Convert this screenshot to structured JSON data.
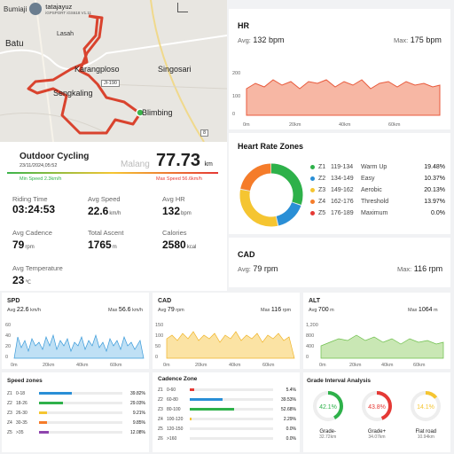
{
  "map": {
    "user_name": "tatajayuz",
    "device": "iGPSPORT iGS618 V1.11",
    "place_left": "Bumiaji",
    "labels": {
      "batu": "Batu",
      "lasah": "Lasah",
      "karangploso": "Karangploso",
      "singosari": "Singosari",
      "sengkaling": "Sengkaling",
      "jl190": "Jl-190",
      "blimbing": "Blimbing",
      "road8": "8",
      "malang": "Malang"
    }
  },
  "activity": {
    "name": "Outdoor Cycling",
    "datetime": "23/11/2024,05:52",
    "distance": "77.73",
    "distance_unit": "km",
    "min_speed": "Min Speed 2.3km/h",
    "max_speed": "Max Speed 56.6km/h"
  },
  "stats": [
    {
      "label": "Riding Time",
      "value": "03:24:53",
      "unit": ""
    },
    {
      "label": "Avg Speed",
      "value": "22.6",
      "unit": "km/h"
    },
    {
      "label": "Avg HR",
      "value": "132",
      "unit": "bpm"
    },
    {
      "label": "Avg Cadence",
      "value": "79",
      "unit": "rpm"
    },
    {
      "label": "Total Ascent",
      "value": "1765",
      "unit": "m"
    },
    {
      "label": "Calories",
      "value": "2580",
      "unit": "kcal"
    },
    {
      "label": "Avg Temperature",
      "value": "23",
      "unit": "℃"
    }
  ],
  "hr": {
    "title": "HR",
    "avg_label": "Avg:",
    "avg": "132",
    "avg_unit": "bpm",
    "max_label": "Max:",
    "max": "175",
    "max_unit": "bpm",
    "yticks": [
      "200",
      "100",
      "0"
    ],
    "xticks": [
      "0m",
      "20km",
      "40km",
      "60km"
    ]
  },
  "hr_zones": {
    "title": "Heart Rate Zones",
    "zones": [
      {
        "id": "Z1",
        "range": "119-134",
        "name": "Warm Up",
        "pct": "19.48%",
        "color": "#2eb14a"
      },
      {
        "id": "Z2",
        "range": "134-149",
        "name": "Easy",
        "pct": "10.37%",
        "color": "#2a8fd6"
      },
      {
        "id": "Z3",
        "range": "149-162",
        "name": "Aerobic",
        "pct": "20.13%",
        "color": "#f5c531"
      },
      {
        "id": "Z4",
        "range": "162-176",
        "name": "Threshold",
        "pct": "13.97%",
        "color": "#f57c2a"
      },
      {
        "id": "Z5",
        "range": "176-189",
        "name": "Maximum",
        "pct": "0.0%",
        "color": "#e53935"
      }
    ]
  },
  "cad_big": {
    "title": "CAD",
    "avg_label": "Avg:",
    "avg": "79",
    "avg_unit": "rpm",
    "max_label": "Max:",
    "max": "116",
    "max_unit": "rpm"
  },
  "spd": {
    "title": "SPD",
    "avg_label": "Avg",
    "avg": "22.6",
    "avg_unit": "km/h",
    "max_label": "Max",
    "max": "56.6",
    "max_unit": "km/h",
    "yticks": [
      "60",
      "40",
      "20",
      "0"
    ],
    "xticks": [
      "0m",
      "20km",
      "40km",
      "60km"
    ]
  },
  "cad_small": {
    "title": "CAD",
    "avg_label": "Avg",
    "avg": "79",
    "avg_unit": "rpm",
    "max_label": "Max",
    "max": "116",
    "max_unit": "rpm",
    "yticks": [
      "150",
      "100",
      "50",
      "0"
    ],
    "xticks": [
      "0m",
      "20km",
      "40km",
      "60km"
    ]
  },
  "alt": {
    "title": "ALT",
    "avg_label": "Avg",
    "avg": "700",
    "avg_unit": "m",
    "max_label": "Max",
    "max": "1064",
    "max_unit": "m",
    "yticks": [
      "1,200",
      "800",
      "400",
      "0"
    ],
    "xticks": [
      "0m",
      "20km",
      "40km",
      "60km"
    ]
  },
  "speed_zones": {
    "title": "Speed zones",
    "rows": [
      {
        "id": "Z1",
        "range": "0-18",
        "pct": "39.82%",
        "fill": 0.3982,
        "color": "#2a8fd6"
      },
      {
        "id": "Z2",
        "range": "18-26",
        "pct": "29.03%",
        "fill": 0.2903,
        "color": "#2eb14a"
      },
      {
        "id": "Z3",
        "range": "26-30",
        "pct": "9.21%",
        "fill": 0.0921,
        "color": "#f5c531"
      },
      {
        "id": "Z4",
        "range": "30-35",
        "pct": "9.85%",
        "fill": 0.0985,
        "color": "#f57c2a"
      },
      {
        "id": "Z5",
        "range": ">35",
        "pct": "12.08%",
        "fill": 0.1208,
        "color": "#8e44ad"
      }
    ]
  },
  "cadence_zones": {
    "title": "Cadence Zone",
    "rows": [
      {
        "id": "Z1",
        "range": "0-60",
        "pct": "5.4%",
        "fill": 0.054,
        "color": "#e53935"
      },
      {
        "id": "Z2",
        "range": "60-80",
        "pct": "39.53%",
        "fill": 0.3953,
        "color": "#2a8fd6"
      },
      {
        "id": "Z3",
        "range": "80-100",
        "pct": "52.68%",
        "fill": 0.5268,
        "color": "#2eb14a"
      },
      {
        "id": "Z4",
        "range": "100-120",
        "pct": "2.29%",
        "fill": 0.0229,
        "color": "#f5c531"
      },
      {
        "id": "Z5",
        "range": "120-150",
        "pct": "0.0%",
        "fill": 0.0,
        "color": "#f57c2a"
      },
      {
        "id": "Z6",
        "range": ">160",
        "pct": "0.0%",
        "fill": 0.0,
        "color": "#8e44ad"
      }
    ]
  },
  "grade": {
    "title": "Grade Interval Analysis",
    "items": [
      {
        "pct": "42.1%",
        "fill": 0.421,
        "label": "Grade-",
        "dist": "32.72km",
        "color": "#2eb14a"
      },
      {
        "pct": "43.8%",
        "fill": 0.438,
        "label": "Grade+",
        "dist": "34.07km",
        "color": "#e53935"
      },
      {
        "pct": "14.1%",
        "fill": 0.141,
        "label": "Flat road",
        "dist": "10.94km",
        "color": "#f5c531"
      }
    ]
  }
}
